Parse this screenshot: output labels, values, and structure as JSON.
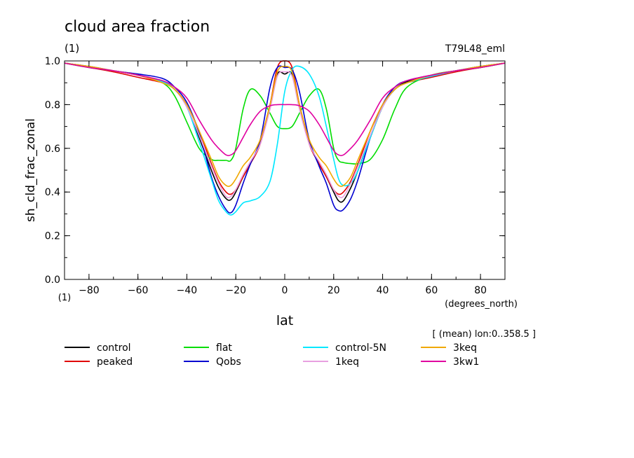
{
  "chart_data": {
    "type": "line",
    "title": "cloud area fraction",
    "title_units": "(1)",
    "run_label": "T79L48_eml",
    "xlabel": "lat",
    "xunits": "(degrees_north)",
    "ylabel": "sh_cld_frac_zonal",
    "yunits": "(1)",
    "note": "[ (mean) lon:0..358.5 ]",
    "xlim": [
      -90,
      90
    ],
    "ylim": [
      0,
      1
    ],
    "xticks": [
      -80,
      -60,
      -40,
      -20,
      0,
      20,
      40,
      60,
      80
    ],
    "yticks": [
      "0.0",
      "0.2",
      "0.4",
      "0.6",
      "0.8",
      "1.0"
    ],
    "x": [
      -90,
      -80,
      -70,
      -60,
      -50,
      -45,
      -40,
      -35,
      -30,
      -27,
      -24,
      -22,
      -20,
      -17,
      -14,
      -10,
      -6,
      -3,
      0,
      3,
      6,
      10,
      14,
      17,
      20,
      22,
      24,
      27,
      30,
      35,
      40,
      45,
      50,
      60,
      70,
      80,
      90
    ],
    "series": [
      {
        "name": "control",
        "color": "#000000",
        "values": [
          0.99,
          0.975,
          0.955,
          0.935,
          0.905,
          0.87,
          0.79,
          0.65,
          0.5,
          0.42,
          0.37,
          0.365,
          0.4,
          0.47,
          0.53,
          0.63,
          0.8,
          0.94,
          0.94,
          0.94,
          0.8,
          0.63,
          0.53,
          0.47,
          0.4,
          0.36,
          0.36,
          0.42,
          0.5,
          0.65,
          0.79,
          0.87,
          0.905,
          0.935,
          0.955,
          0.975,
          0.99
        ]
      },
      {
        "name": "peaked",
        "color": "#e00000",
        "values": [
          0.99,
          0.97,
          0.95,
          0.925,
          0.9,
          0.87,
          0.8,
          0.68,
          0.53,
          0.45,
          0.4,
          0.39,
          0.41,
          0.47,
          0.53,
          0.62,
          0.8,
          0.97,
          1.0,
          0.97,
          0.8,
          0.62,
          0.53,
          0.47,
          0.41,
          0.39,
          0.4,
          0.45,
          0.53,
          0.68,
          0.8,
          0.87,
          0.9,
          0.925,
          0.95,
          0.97,
          0.99
        ]
      },
      {
        "name": "flat",
        "color": "#00dd00",
        "values": [
          0.99,
          0.97,
          0.955,
          0.935,
          0.9,
          0.84,
          0.72,
          0.6,
          0.55,
          0.545,
          0.545,
          0.545,
          0.6,
          0.78,
          0.87,
          0.84,
          0.76,
          0.7,
          0.69,
          0.7,
          0.76,
          0.84,
          0.87,
          0.78,
          0.6,
          0.545,
          0.535,
          0.53,
          0.53,
          0.55,
          0.64,
          0.78,
          0.88,
          0.935,
          0.955,
          0.97,
          0.99
        ]
      },
      {
        "name": "Qobs",
        "color": "#0000d0",
        "values": [
          0.99,
          0.975,
          0.955,
          0.94,
          0.92,
          0.88,
          0.81,
          0.67,
          0.47,
          0.38,
          0.32,
          0.305,
          0.34,
          0.44,
          0.53,
          0.64,
          0.88,
          0.97,
          0.97,
          0.96,
          0.86,
          0.64,
          0.52,
          0.44,
          0.34,
          0.315,
          0.32,
          0.37,
          0.46,
          0.65,
          0.8,
          0.88,
          0.91,
          0.935,
          0.955,
          0.975,
          0.99
        ]
      },
      {
        "name": "control-5N",
        "color": "#00e8ff",
        "values": [
          0.99,
          0.975,
          0.955,
          0.935,
          0.905,
          0.87,
          0.79,
          0.63,
          0.46,
          0.36,
          0.31,
          0.295,
          0.31,
          0.35,
          0.36,
          0.38,
          0.45,
          0.62,
          0.86,
          0.96,
          0.975,
          0.94,
          0.84,
          0.7,
          0.55,
          0.46,
          0.43,
          0.44,
          0.5,
          0.65,
          0.79,
          0.87,
          0.9,
          0.93,
          0.955,
          0.975,
          0.99
        ]
      },
      {
        "name": "1keq",
        "color": "#e8a0e0",
        "values": [
          0.99,
          0.975,
          0.955,
          0.935,
          0.9,
          0.87,
          0.79,
          0.66,
          0.52,
          0.44,
          0.38,
          0.38,
          0.41,
          0.48,
          0.54,
          0.62,
          0.78,
          0.93,
          0.95,
          0.93,
          0.78,
          0.62,
          0.54,
          0.48,
          0.41,
          0.38,
          0.38,
          0.44,
          0.52,
          0.66,
          0.79,
          0.87,
          0.9,
          0.935,
          0.955,
          0.975,
          0.99
        ]
      },
      {
        "name": "3keq",
        "color": "#f0a800",
        "values": [
          0.99,
          0.975,
          0.955,
          0.935,
          0.9,
          0.87,
          0.8,
          0.68,
          0.55,
          0.47,
          0.43,
          0.43,
          0.46,
          0.52,
          0.56,
          0.64,
          0.8,
          0.95,
          0.975,
          0.95,
          0.8,
          0.64,
          0.56,
          0.52,
          0.46,
          0.43,
          0.43,
          0.47,
          0.55,
          0.68,
          0.8,
          0.87,
          0.9,
          0.935,
          0.955,
          0.975,
          0.99
        ]
      },
      {
        "name": "3kw1",
        "color": "#e000a0",
        "values": [
          0.99,
          0.97,
          0.955,
          0.935,
          0.91,
          0.88,
          0.83,
          0.73,
          0.64,
          0.6,
          0.57,
          0.57,
          0.59,
          0.65,
          0.71,
          0.77,
          0.795,
          0.8,
          0.8,
          0.8,
          0.795,
          0.77,
          0.71,
          0.65,
          0.59,
          0.57,
          0.57,
          0.6,
          0.64,
          0.73,
          0.83,
          0.88,
          0.91,
          0.935,
          0.955,
          0.97,
          0.99
        ]
      }
    ]
  }
}
